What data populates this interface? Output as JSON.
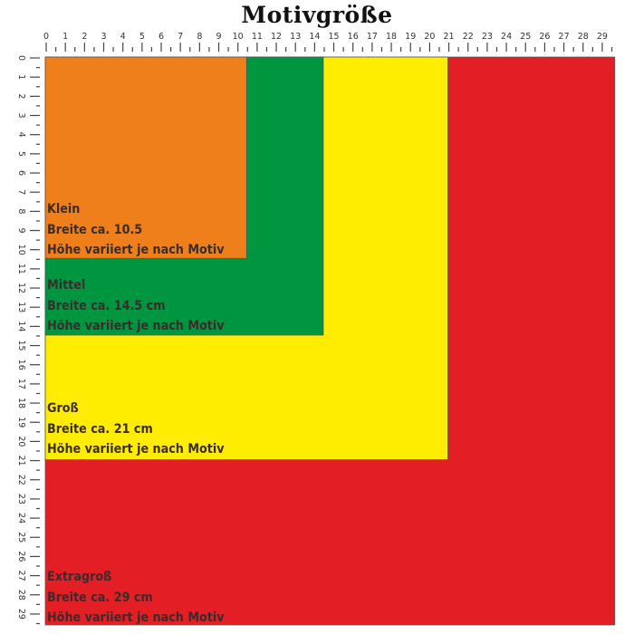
{
  "title": "Motivgröße",
  "ruler": {
    "min": 0,
    "max": 29,
    "unit": "cm"
  },
  "sizes": [
    {
      "name": "Extragroß",
      "width_text": "Breite ca. 29 cm",
      "height_text": "Höhe variiert je nach Motiv",
      "color": "#e31e24",
      "width_cm": 29.7,
      "height_cm": 29.7
    },
    {
      "name": "Groß",
      "width_text": "Breite ca. 21 cm",
      "height_text": "Höhe variiert je nach Motiv",
      "color": "#ffed00",
      "width_cm": 21,
      "height_cm": 21
    },
    {
      "name": "Mittel",
      "width_text": "Breite ca. 14.5 cm",
      "height_text": "Höhe variiert je nach Motiv",
      "color": "#009640",
      "width_cm": 14.5,
      "height_cm": 14.5
    },
    {
      "name": "Klein",
      "width_text": "Breite ca. 10.5",
      "height_text": "Höhe variiert je nach Motiv",
      "color": "#ef7f1a",
      "width_cm": 10.5,
      "height_cm": 10.5
    }
  ]
}
